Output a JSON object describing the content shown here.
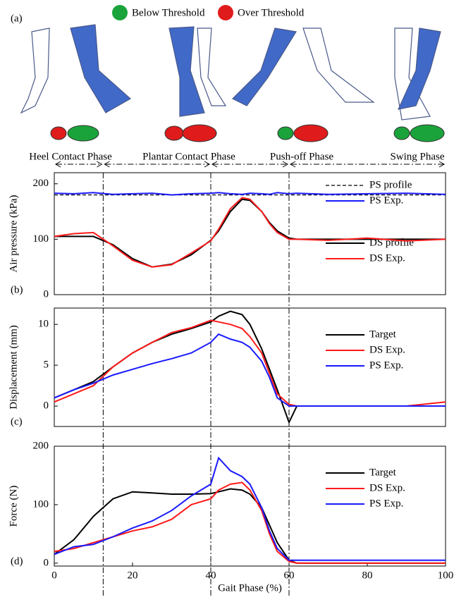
{
  "illustration": {
    "panel_label": "(a)",
    "legend": [
      {
        "label": "Below Threshold",
        "color": "#1aa33a"
      },
      {
        "label": "Over Threshold",
        "color": "#e01b1b"
      }
    ],
    "phases": [
      "Heel Contact Phase",
      "Plantar Contact Phase",
      "Push-off Phase",
      "Swing Phase"
    ],
    "phase_bounds": [
      0,
      12.5,
      40,
      60,
      100
    ]
  },
  "chart_data": [
    {
      "type": "line",
      "panel_label": "(b)",
      "ylabel": "Air pressure (kPa)",
      "xlim": [
        0,
        100
      ],
      "ylim": [
        0,
        220
      ],
      "yticks": [
        0,
        100,
        200
      ],
      "x": [
        0,
        5,
        10,
        15,
        20,
        25,
        30,
        35,
        40,
        42,
        45,
        48,
        50,
        53,
        55,
        57,
        60,
        62,
        70,
        80,
        90,
        100
      ],
      "series": [
        {
          "name": "PS profile",
          "color": "#000000",
          "dashed": true,
          "values": [
            180,
            180,
            180,
            180,
            180,
            180,
            180,
            180,
            180,
            180,
            180,
            180,
            180,
            180,
            180,
            180,
            180,
            180,
            180,
            180,
            180,
            180
          ]
        },
        {
          "name": "PS Exp.",
          "color": "#1a1aff",
          "values": [
            183,
            182,
            184,
            181,
            182,
            183,
            180,
            182,
            183,
            184,
            182,
            181,
            183,
            182,
            181,
            184,
            182,
            183,
            181,
            182,
            183,
            181
          ]
        },
        {
          "name": "DS profile",
          "color": "#000000",
          "values": [
            105,
            105,
            105,
            90,
            65,
            50,
            55,
            72,
            98,
            115,
            150,
            172,
            170,
            150,
            130,
            115,
            102,
            100,
            100,
            100,
            100,
            100
          ]
        },
        {
          "name": "DS Exp.",
          "color": "#ff1a1a",
          "values": [
            105,
            110,
            112,
            88,
            62,
            50,
            54,
            75,
            97,
            118,
            155,
            175,
            172,
            150,
            128,
            112,
            100,
            100,
            98,
            102,
            97,
            100
          ]
        }
      ]
    },
    {
      "type": "line",
      "panel_label": "(c)",
      "ylabel": "Displacement (mm)",
      "xlim": [
        0,
        100
      ],
      "ylim": [
        -2.5,
        12
      ],
      "yticks": [
        0,
        5,
        10
      ],
      "x": [
        0,
        5,
        10,
        15,
        20,
        25,
        30,
        35,
        40,
        42,
        45,
        48,
        50,
        53,
        55,
        57,
        60,
        62,
        70,
        80,
        90,
        100
      ],
      "series": [
        {
          "name": "Target",
          "color": "#000000",
          "values": [
            1,
            2,
            3,
            4.8,
            6.5,
            7.8,
            8.8,
            9.5,
            10.3,
            11,
            11.6,
            11.2,
            10,
            7,
            4.5,
            2,
            -2,
            0,
            0,
            0,
            0,
            0
          ]
        },
        {
          "name": "DS Exp.",
          "color": "#ff1a1a",
          "values": [
            0.5,
            1.5,
            2.5,
            4.8,
            6.5,
            7.8,
            9,
            9.6,
            10.5,
            10.3,
            10,
            9.5,
            8.5,
            6.5,
            4,
            1.5,
            0.2,
            0,
            0,
            0,
            0,
            0.5
          ]
        },
        {
          "name": "PS Exp.",
          "color": "#1a1aff",
          "values": [
            1,
            2,
            2.8,
            3.8,
            4.5,
            5.2,
            5.8,
            6.5,
            7.8,
            8.8,
            8.2,
            7.8,
            7.2,
            5.5,
            3.5,
            1,
            0,
            0,
            0,
            0,
            0,
            0
          ]
        }
      ]
    },
    {
      "type": "line",
      "panel_label": "(d)",
      "ylabel": "Force (N)",
      "xlabel": "Gait Phase (%)",
      "xlim": [
        0,
        100
      ],
      "ylim": [
        -5,
        200
      ],
      "yticks": [
        0,
        100,
        200
      ],
      "xticks": [
        0,
        20,
        40,
        60,
        80,
        100
      ],
      "x": [
        0,
        5,
        10,
        15,
        20,
        25,
        30,
        35,
        40,
        42,
        45,
        48,
        50,
        53,
        55,
        57,
        60,
        62,
        70,
        80,
        90,
        100
      ],
      "series": [
        {
          "name": "Target",
          "color": "#000000",
          "values": [
            15,
            40,
            80,
            110,
            122,
            120,
            118,
            118,
            119,
            122,
            127,
            125,
            118,
            95,
            65,
            35,
            5,
            0,
            0,
            0,
            0,
            0
          ]
        },
        {
          "name": "DS Exp.",
          "color": "#ff1a1a",
          "values": [
            20,
            25,
            35,
            45,
            55,
            62,
            75,
            100,
            110,
            125,
            135,
            138,
            125,
            90,
            50,
            20,
            3,
            0,
            0,
            0,
            0,
            0
          ]
        },
        {
          "name": "PS Exp.",
          "color": "#1a1aff",
          "values": [
            15,
            28,
            32,
            45,
            60,
            72,
            90,
            115,
            135,
            180,
            158,
            148,
            135,
            95,
            55,
            25,
            5,
            5,
            5,
            5,
            5,
            5
          ]
        }
      ]
    }
  ]
}
